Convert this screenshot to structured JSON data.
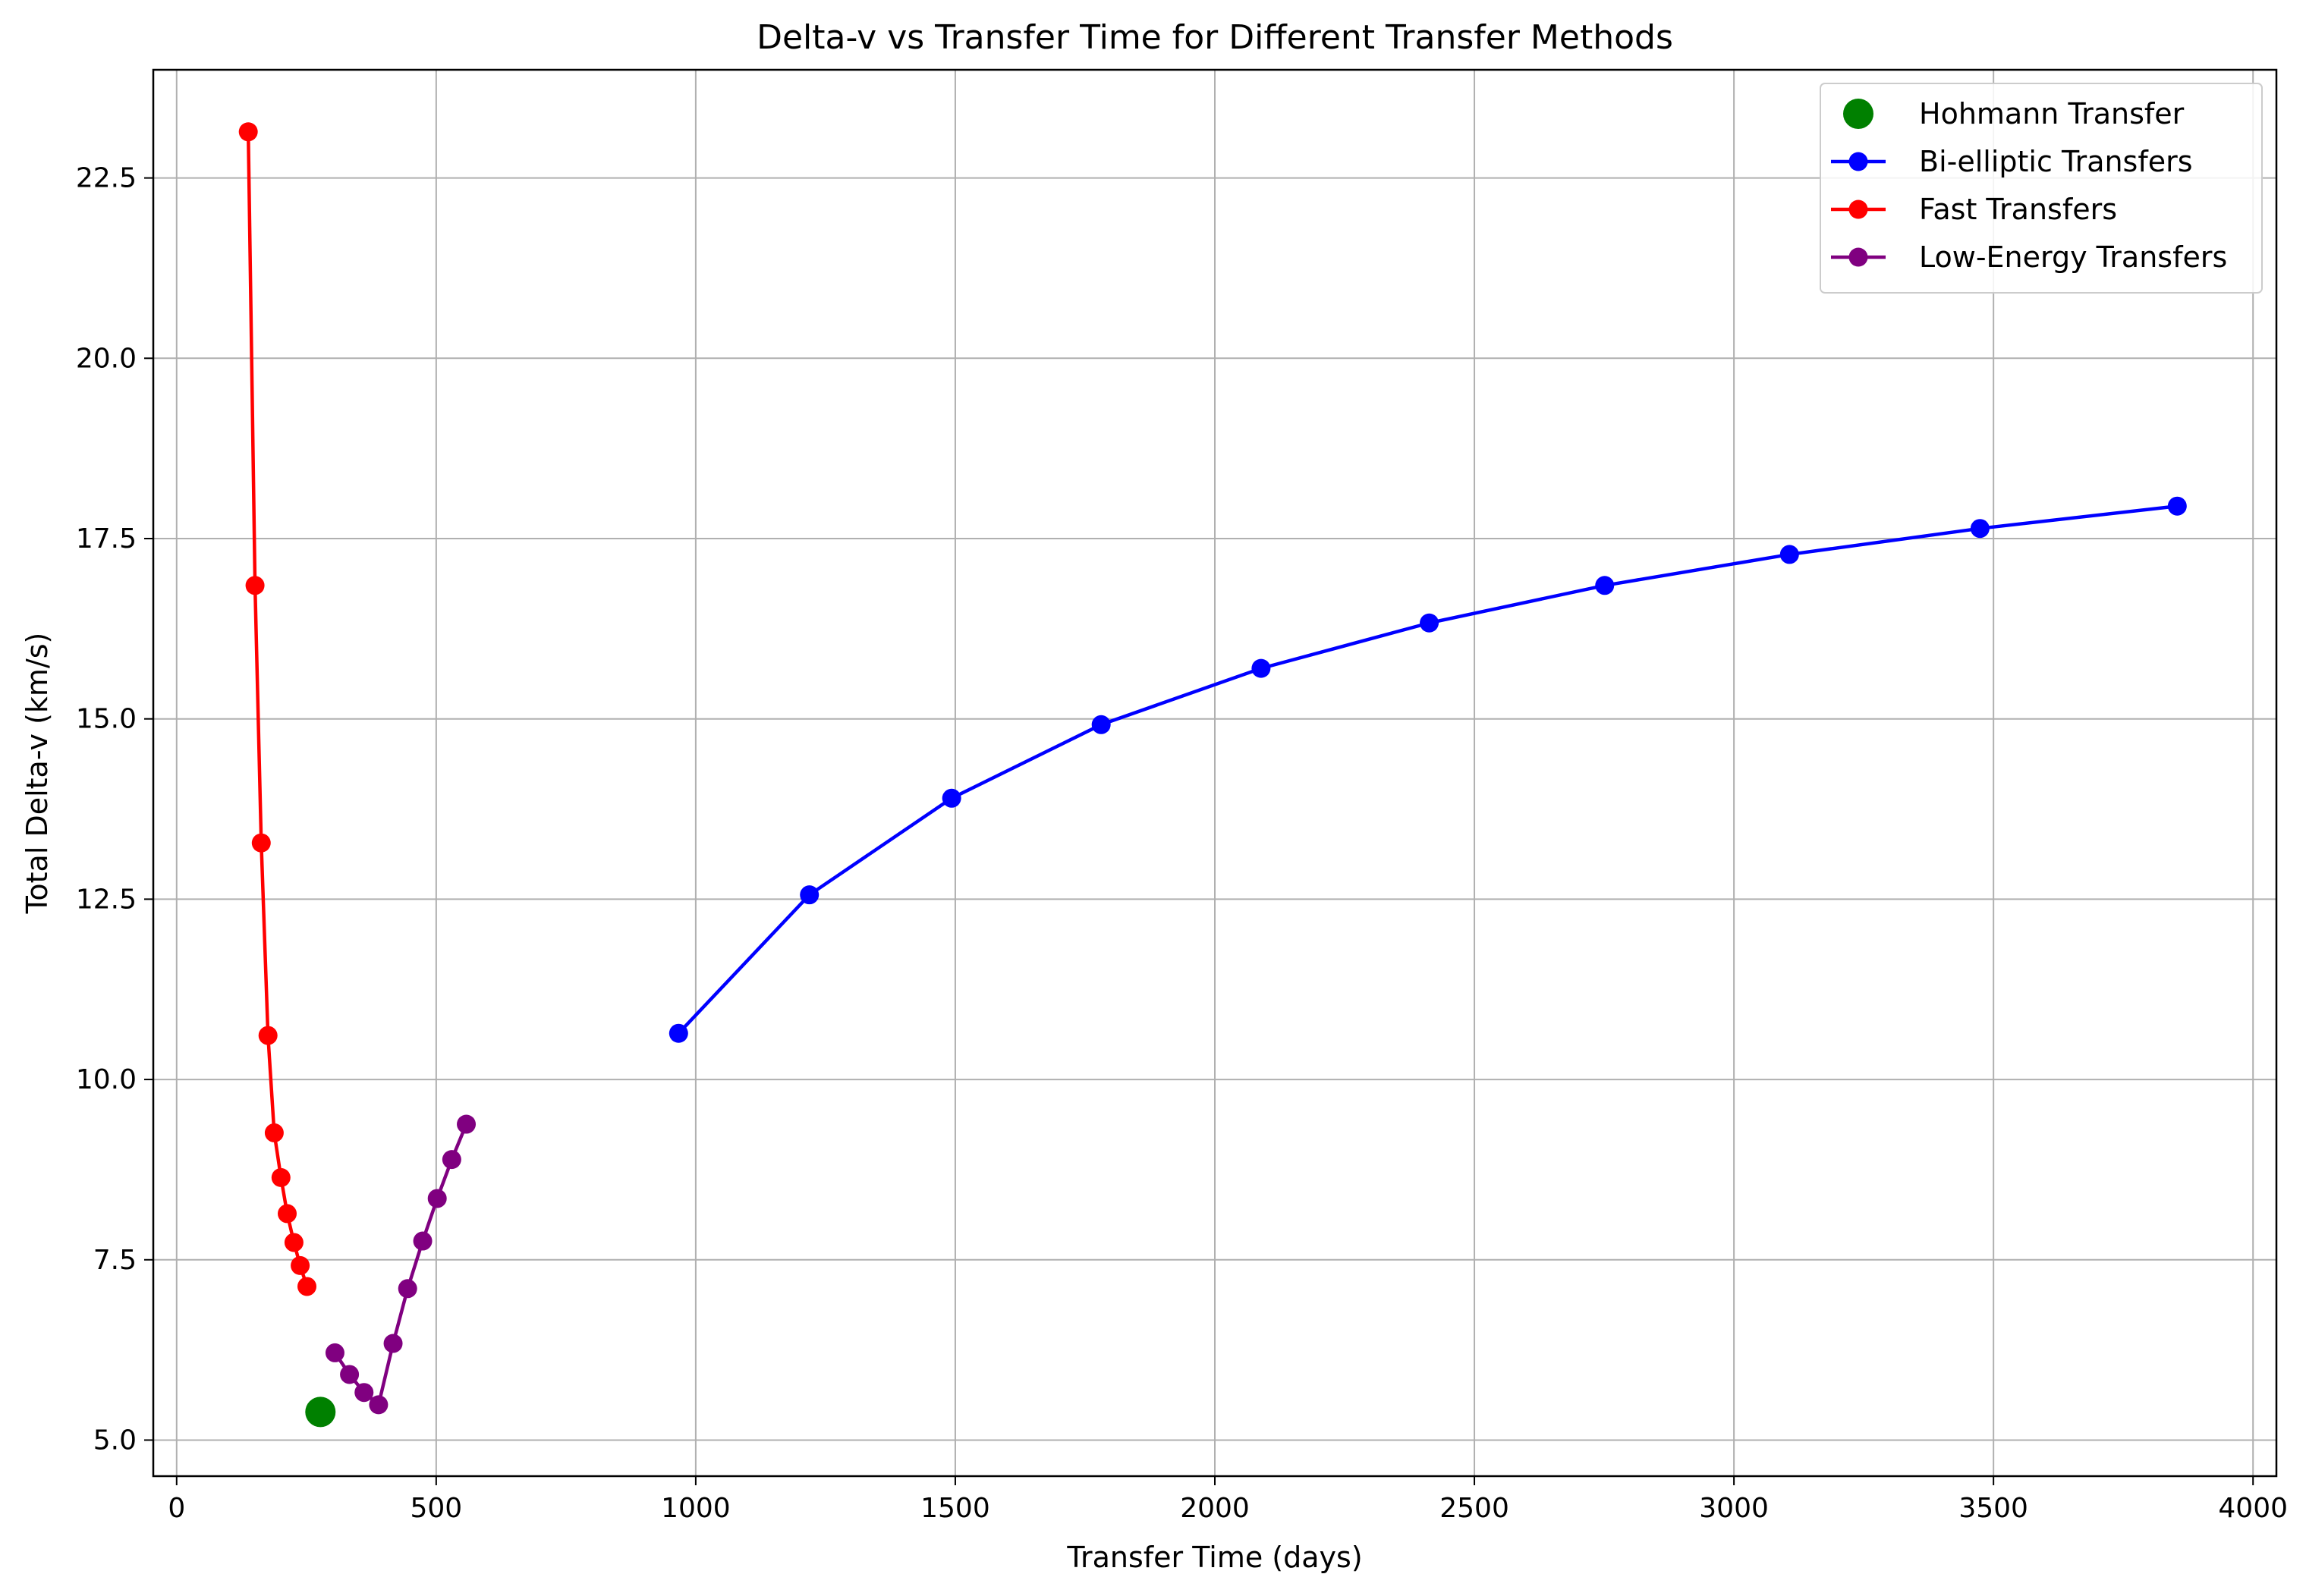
{
  "chart_data": {
    "type": "line",
    "title": "Delta-v vs Transfer Time for Different Transfer Methods",
    "xlabel": "Transfer Time (days)",
    "ylabel": "Total Delta-v (km/s)",
    "xlim": [
      -45,
      4045
    ],
    "ylim": [
      4.5,
      24.0
    ],
    "xticks": [
      0,
      500,
      1000,
      1500,
      2000,
      2500,
      3000,
      3500,
      4000
    ],
    "xtick_labels": [
      "0",
      "500",
      "1000",
      "1500",
      "2000",
      "2500",
      "3000",
      "3500",
      "4000"
    ],
    "yticks": [
      5.0,
      7.5,
      10.0,
      12.5,
      15.0,
      17.5,
      20.0,
      22.5
    ],
    "ytick_labels": [
      "5.0",
      "7.5",
      "10.0",
      "12.5",
      "15.0",
      "17.5",
      "20.0",
      "22.5"
    ],
    "grid": true,
    "legend_position": "top-right",
    "series": [
      {
        "name": "Hohmann Transfer",
        "style": "scatter",
        "color": "#008000",
        "x": [
          277
        ],
        "y": [
          5.39
        ]
      },
      {
        "name": "Bi-elliptic Transfers",
        "style": "line-marker",
        "color": "#0000ff",
        "x": [
          967,
          1219,
          1493,
          1781,
          2089,
          2413,
          2751,
          3107,
          3474,
          3854
        ],
        "y": [
          10.64,
          12.56,
          13.9,
          14.92,
          15.7,
          16.33,
          16.85,
          17.28,
          17.64,
          17.95
        ]
      },
      {
        "name": "Fast Transfers",
        "style": "line-marker",
        "color": "#ff0000",
        "x": [
          138,
          151,
          163,
          176,
          188,
          201,
          213,
          226,
          238,
          251
        ],
        "y": [
          23.14,
          16.85,
          13.28,
          10.61,
          9.26,
          8.64,
          8.14,
          7.74,
          7.42,
          7.13
        ]
      },
      {
        "name": "Low-Energy Transfers",
        "style": "line-marker",
        "color": "#800080",
        "x": [
          305,
          333,
          361,
          389,
          417,
          445,
          474,
          502,
          530,
          558
        ],
        "y": [
          6.21,
          5.91,
          5.66,
          5.49,
          6.34,
          7.1,
          7.76,
          8.35,
          8.89,
          9.38
        ]
      }
    ]
  }
}
